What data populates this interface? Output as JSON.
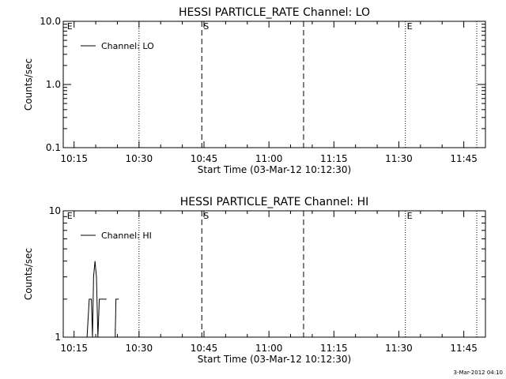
{
  "footer_timestamp": "3-Mar-2012 04:10",
  "chart_data": [
    {
      "type": "line",
      "title": "HESSI PARTICLE_RATE Channel: LO",
      "xlabel": "Start Time (03-Mar-12 10:12:30)",
      "ylabel": "Counts/sec",
      "yscale": "log",
      "ylim": [
        0.1,
        10.0
      ],
      "yticks": [
        "0.1",
        "1.0",
        "10.0"
      ],
      "xlim": [
        "10:12:30",
        "11:50:00"
      ],
      "xticks": [
        "10:15",
        "10:30",
        "10:45",
        "11:00",
        "11:15",
        "11:30",
        "11:45"
      ],
      "legend": {
        "label": "Channel: LO",
        "placement": "top-left"
      },
      "markers": [
        {
          "time": "10:13:00",
          "label": "E",
          "style": "none"
        },
        {
          "time": "10:30:00",
          "label": "",
          "style": "dotted"
        },
        {
          "time": "10:44:30",
          "label": "S",
          "style": "dashed"
        },
        {
          "time": "11:08:00",
          "label": "",
          "style": "dashed"
        },
        {
          "time": "11:31:30",
          "label": "E",
          "style": "dotted"
        },
        {
          "time": "11:48:00",
          "label": "",
          "style": "dotted"
        }
      ],
      "series": [
        {
          "name": "Channel: LO",
          "points": []
        }
      ]
    },
    {
      "type": "line",
      "title": "HESSI PARTICLE_RATE Channel: HI",
      "xlabel": "Start Time (03-Mar-12 10:12:30)",
      "ylabel": "Counts/sec",
      "yscale": "log",
      "ylim": [
        1,
        10
      ],
      "yticks": [
        "1",
        "10"
      ],
      "xlim": [
        "10:12:30",
        "11:50:00"
      ],
      "xticks": [
        "10:15",
        "10:30",
        "10:45",
        "11:00",
        "11:15",
        "11:30",
        "11:45"
      ],
      "legend": {
        "label": "Channel: HI",
        "placement": "top-left"
      },
      "markers": [
        {
          "time": "10:13:00",
          "label": "E",
          "style": "none"
        },
        {
          "time": "10:30:00",
          "label": "",
          "style": "dotted"
        },
        {
          "time": "10:44:30",
          "label": "S",
          "style": "dashed"
        },
        {
          "time": "11:08:00",
          "label": "",
          "style": "dashed"
        },
        {
          "time": "11:31:30",
          "label": "E",
          "style": "dotted"
        },
        {
          "time": "11:48:00",
          "label": "",
          "style": "dotted"
        }
      ],
      "series": [
        {
          "name": "Channel: HI",
          "segments": [
            [
              {
                "t": "10:18:00",
                "y": 1
              },
              {
                "t": "10:18:30",
                "y": 2
              },
              {
                "t": "10:19:00",
                "y": 2
              },
              {
                "t": "10:19:15",
                "y": 1
              },
              {
                "t": "10:19:30",
                "y": 3
              },
              {
                "t": "10:19:50",
                "y": 4
              },
              {
                "t": "10:20:10",
                "y": 3
              },
              {
                "t": "10:20:30",
                "y": 1
              },
              {
                "t": "10:20:50",
                "y": 2
              },
              {
                "t": "10:22:30",
                "y": 2
              }
            ],
            [
              {
                "t": "10:24:30",
                "y": 1
              },
              {
                "t": "10:24:40",
                "y": 2
              },
              {
                "t": "10:25:20",
                "y": 2
              }
            ]
          ]
        }
      ]
    }
  ]
}
